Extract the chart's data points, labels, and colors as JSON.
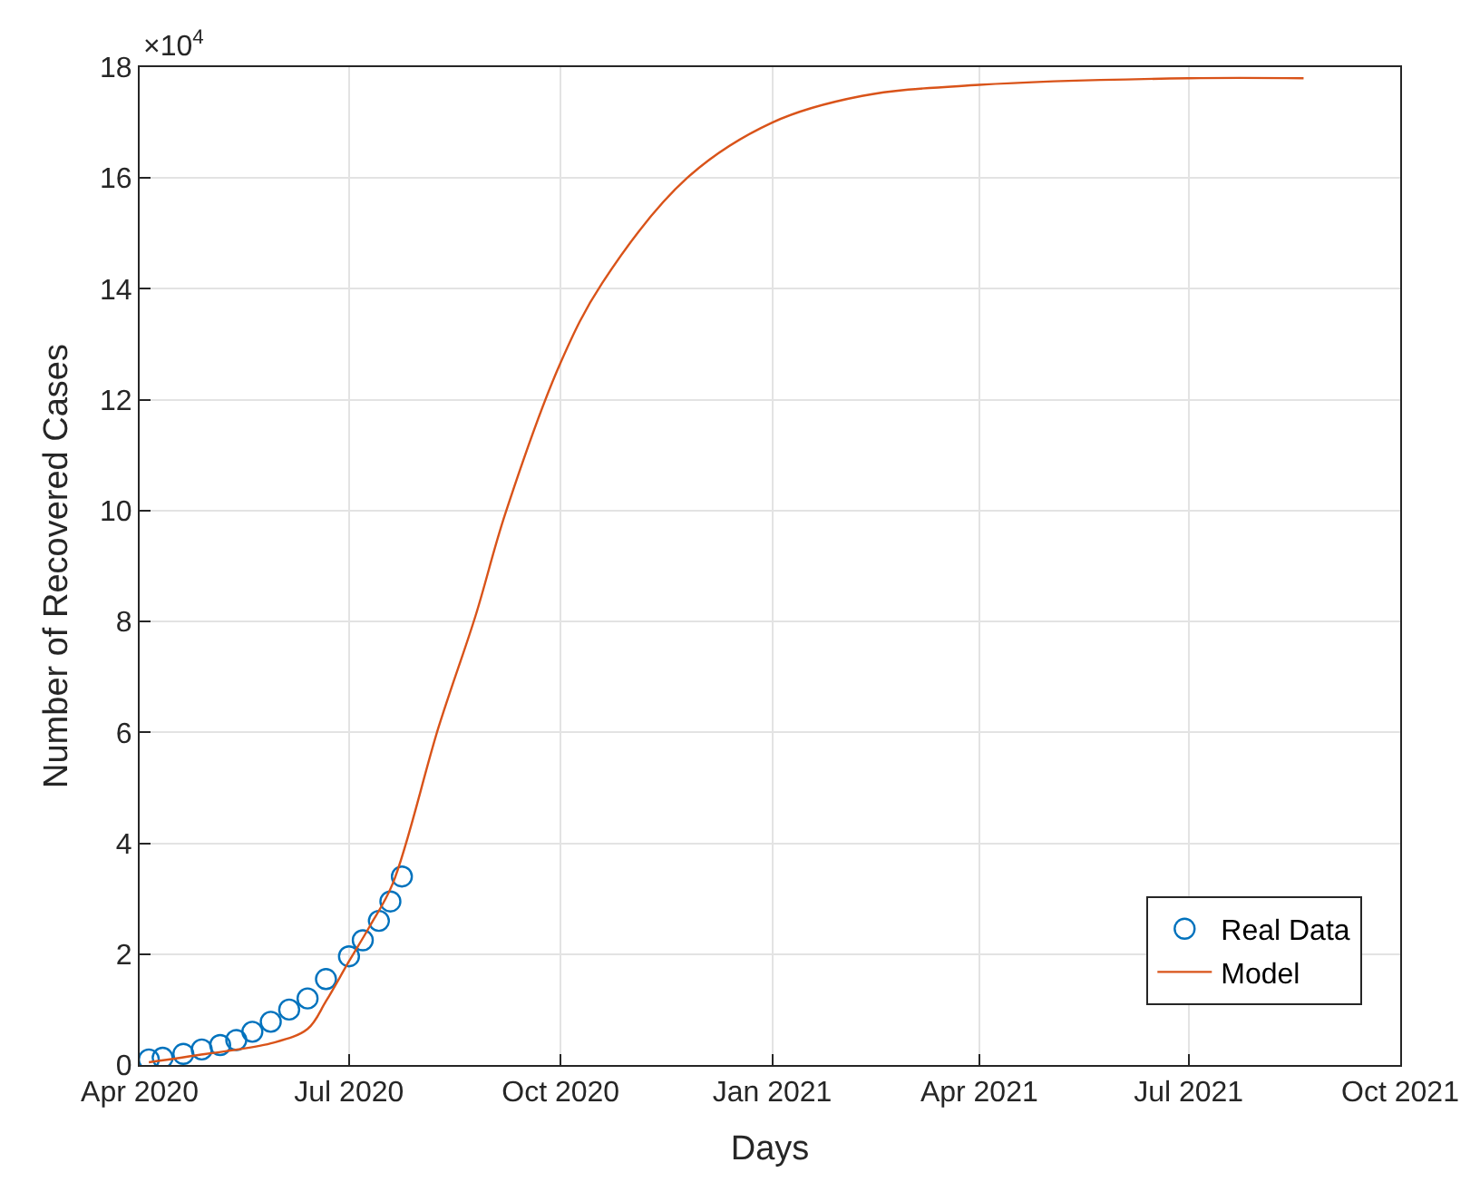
{
  "chart_data": {
    "type": "line",
    "xlabel": "Days",
    "ylabel": "Number of Recovered Cases",
    "annotations": [
      "×10$^{4}$"
    ],
    "xlim": [
      "2020-04-01",
      "2021-10-01"
    ],
    "xticks": [
      {
        "value": "2020-04-01",
        "label": "Apr 2020"
      },
      {
        "value": "2020-07-01",
        "label": "Jul 2020"
      },
      {
        "value": "2020-10-01",
        "label": "Oct 2020"
      },
      {
        "value": "2021-01-01",
        "label": "Jan 2021"
      },
      {
        "value": "2021-04-01",
        "label": "Apr 2021"
      },
      {
        "value": "2021-07-01",
        "label": "Jul 2021"
      },
      {
        "value": "2021-10-01",
        "label": "Oct 2021"
      }
    ],
    "ylim": [
      0,
      18
    ],
    "yticks": [
      0,
      2,
      4,
      6,
      8,
      10,
      12,
      14,
      16,
      18
    ],
    "grid": true,
    "legend": "bottom right",
    "series": [
      {
        "name": "Real Data",
        "type": "scatter",
        "marker": "circle",
        "color": "#0072bd",
        "x": [
          "2020-04-05",
          "2020-04-11",
          "2020-04-20",
          "2020-04-28",
          "2020-05-06",
          "2020-05-13",
          "2020-05-20",
          "2020-05-28",
          "2020-06-05",
          "2020-06-13",
          "2020-06-21",
          "2020-07-01",
          "2020-07-07",
          "2020-07-14",
          "2020-07-19",
          "2020-07-24"
        ],
        "values": [
          0.1,
          0.13,
          0.2,
          0.28,
          0.36,
          0.45,
          0.6,
          0.78,
          1.0,
          1.2,
          1.55,
          1.96,
          2.25,
          2.6,
          2.95,
          3.4
        ]
      },
      {
        "name": "Model",
        "marker": "none",
        "color": "#d95319",
        "x": [
          "2020-04-05",
          "2020-04-30",
          "2020-05-28",
          "2020-06-13",
          "2020-06-21",
          "2020-07-01",
          "2020-07-10",
          "2020-07-20",
          "2020-08-09",
          "2020-08-25",
          "2020-09-07",
          "2020-10-01",
          "2020-10-19",
          "2020-11-25",
          "2021-01-01",
          "2021-02-09",
          "2021-04-01",
          "2021-07-01",
          "2021-08-20"
        ],
        "values": [
          0.05,
          0.2,
          0.39,
          0.65,
          1.15,
          1.87,
          2.5,
          3.27,
          6.1,
          8.1,
          9.95,
          12.67,
          14.1,
          16.0,
          17.0,
          17.48,
          17.68,
          17.8,
          17.8
        ]
      }
    ]
  }
}
